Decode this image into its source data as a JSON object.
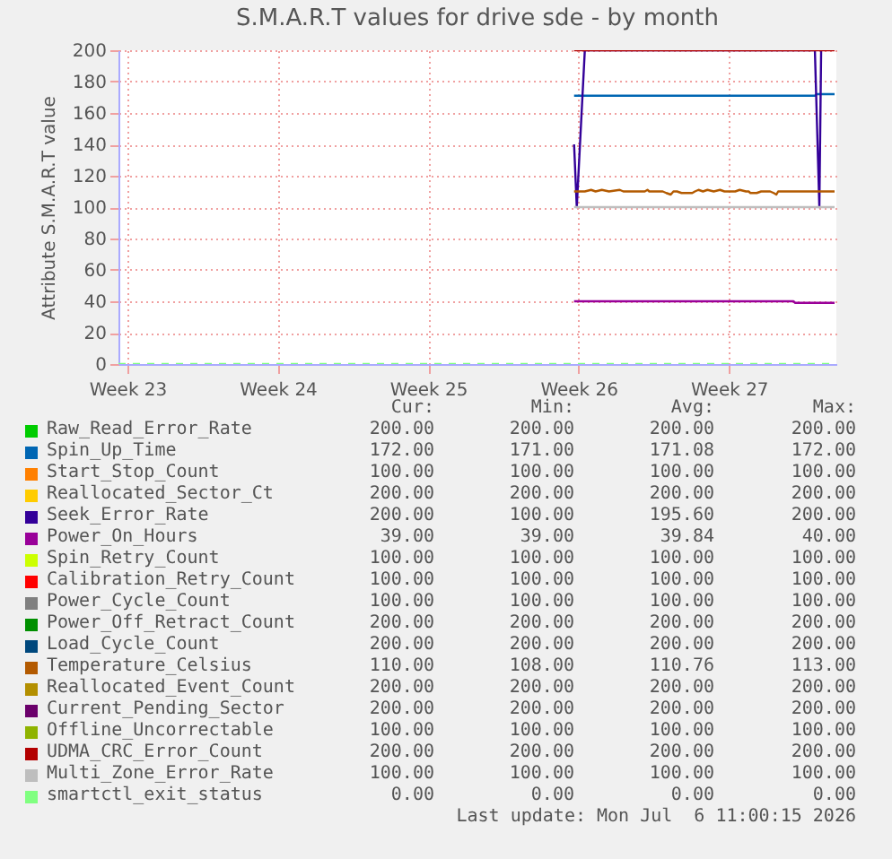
{
  "chart_data": {
    "type": "line",
    "title": "S.M.A.R.T values for drive sde - by month",
    "ylabel": "Attribute S.M.A.R.T value",
    "xlim": [
      "2026-05-31T14:00",
      "2026-07-04T00:00"
    ],
    "xticks": [
      {
        "value": "2026-06-01",
        "label": "Week 23"
      },
      {
        "value": "2026-06-08",
        "label": "Week 24"
      },
      {
        "value": "2026-06-15",
        "label": "Week 25"
      },
      {
        "value": "2026-06-22",
        "label": "Week 26"
      },
      {
        "value": "2026-06-29",
        "label": "Week 27"
      }
    ],
    "ylim": [
      0,
      200
    ],
    "yticks": [
      0,
      20,
      40,
      60,
      80,
      100,
      120,
      140,
      160,
      180,
      200
    ],
    "grid": true,
    "legend": "bottom",
    "line_style": "solid",
    "marker": "none",
    "series": [
      {
        "name": "Raw_Read_Error_Rate",
        "color": "#00cc00"
      },
      {
        "name": "Spin_Up_Time",
        "color": "#0066b3",
        "x": [
          "2026-06-21T19:00",
          "2026-07-03T00:00",
          "2026-07-03T02:00",
          "2026-07-03T22:00"
        ],
        "values": [
          171,
          171,
          172,
          172
        ]
      },
      {
        "name": "Start_Stop_Count",
        "color": "#ff8000"
      },
      {
        "name": "Reallocated_Sector_Ct",
        "color": "#ffcc00"
      },
      {
        "name": "Seek_Error_Rate",
        "color": "#330099",
        "x": [
          "2026-06-21T19:00",
          "2026-06-21T22:00",
          "2026-06-22T07:00",
          "2026-07-03T00:00",
          "2026-07-03T05:00",
          "2026-07-03T07:00"
        ],
        "values": [
          140,
          100,
          200,
          200,
          100,
          200
        ]
      },
      {
        "name": "Power_On_Hours",
        "color": "#990099",
        "x": [
          "2026-06-21T19:00",
          "2026-07-02T00:00",
          "2026-07-02T02:00",
          "2026-07-03T22:00"
        ],
        "values": [
          40,
          40,
          39,
          39
        ]
      },
      {
        "name": "Spin_Retry_Count",
        "color": "#ccff00"
      },
      {
        "name": "Calibration_Retry_Count",
        "color": "#ff0000"
      },
      {
        "name": "Power_Cycle_Count",
        "color": "#808080"
      },
      {
        "name": "Power_Off_Retract_Count",
        "color": "#008f00"
      },
      {
        "name": "Load_Cycle_Count",
        "color": "#00487d"
      },
      {
        "name": "Temperature_Celsius",
        "color": "#b35a00",
        "x": [
          "2026-06-21T19:00",
          "2026-06-22T07:00",
          "2026-06-22T14:00",
          "2026-06-22T19:00",
          "2026-06-23T02:00",
          "2026-06-23T10:00",
          "2026-06-23T22:00",
          "2026-06-24T02:00",
          "2026-06-25T02:00",
          "2026-06-25T05:00",
          "2026-06-25T07:00",
          "2026-06-25T22:00",
          "2026-06-26T02:00",
          "2026-06-26T07:00",
          "2026-06-26T10:00",
          "2026-06-26T14:00",
          "2026-06-26T19:00",
          "2026-06-27T07:00",
          "2026-06-27T10:00",
          "2026-06-27T14:00",
          "2026-06-27T19:00",
          "2026-06-28T00:00",
          "2026-06-28T07:00",
          "2026-06-28T14:00",
          "2026-06-28T19:00",
          "2026-06-29T07:00",
          "2026-06-29T12:00",
          "2026-06-29T19:00",
          "2026-06-29T22:00",
          "2026-06-30T00:00",
          "2026-06-30T07:00",
          "2026-06-30T12:00",
          "2026-06-30T22:00",
          "2026-07-01T02:00",
          "2026-07-01T05:00",
          "2026-07-01T07:00",
          "2026-07-01T22:00",
          "2026-07-02T14:00",
          "2026-07-03T00:00",
          "2026-07-03T22:00"
        ],
        "values": [
          110,
          110,
          111,
          110,
          111,
          110,
          111,
          110,
          110,
          111,
          110,
          110,
          109,
          108,
          110,
          110,
          109,
          109,
          110,
          111,
          110,
          111,
          110,
          111,
          110,
          110,
          111,
          110,
          110,
          109,
          109,
          110,
          110,
          109,
          108,
          110,
          110,
          110,
          110,
          110
        ]
      },
      {
        "name": "Reallocated_Event_Count",
        "color": "#b38f00"
      },
      {
        "name": "Current_Pending_Sector",
        "color": "#6b006b"
      },
      {
        "name": "Offline_Uncorrectable",
        "color": "#8fb300"
      },
      {
        "name": "UDMA_CRC_Error_Count",
        "color": "#b30000",
        "x": [
          "2026-06-21T19:00",
          "2026-07-03T22:00"
        ],
        "values": [
          200,
          200
        ]
      },
      {
        "name": "Multi_Zone_Error_Rate",
        "color": "#bebebe",
        "x": [
          "2026-06-21T19:00",
          "2026-07-03T22:00"
        ],
        "values": [
          100,
          100
        ]
      },
      {
        "name": "smartctl_exit_status",
        "color": "#80ff80",
        "line_style": "dashed",
        "x": [
          "2026-05-31T14:00",
          "2026-07-03T22:00"
        ],
        "values": [
          0,
          0
        ]
      }
    ],
    "annotations": [
      "Cur:",
      "Min:",
      "Avg:",
      "Max:",
      "200.00",
      "200.00",
      "200.00",
      "200.00",
      "172.00",
      "171.00",
      "171.08",
      "172.00",
      "100.00",
      "100.00",
      "100.00",
      "100.00",
      "200.00",
      "200.00",
      "200.00",
      "200.00",
      "200.00",
      "100.00",
      "195.60",
      "200.00",
      "39.00",
      "39.00",
      "39.84",
      "40.00",
      "100.00",
      "100.00",
      "100.00",
      "100.00",
      "100.00",
      "100.00",
      "100.00",
      "100.00",
      "100.00",
      "100.00",
      "100.00",
      "100.00",
      "200.00",
      "200.00",
      "200.00",
      "200.00",
      "200.00",
      "200.00",
      "200.00",
      "200.00",
      "110.00",
      "108.00",
      "110.76",
      "113.00",
      "200.00",
      "200.00",
      "200.00",
      "200.00",
      "200.00",
      "200.00",
      "200.00",
      "200.00",
      "100.00",
      "100.00",
      "100.00",
      "100.00",
      "200.00",
      "200.00",
      "200.00",
      "200.00",
      "100.00",
      "100.00",
      "100.00",
      "100.00",
      "0.00",
      "0.00",
      "0.00",
      "0.00",
      "Last update: Mon Jul  6 11:00:15 2026"
    ]
  }
}
